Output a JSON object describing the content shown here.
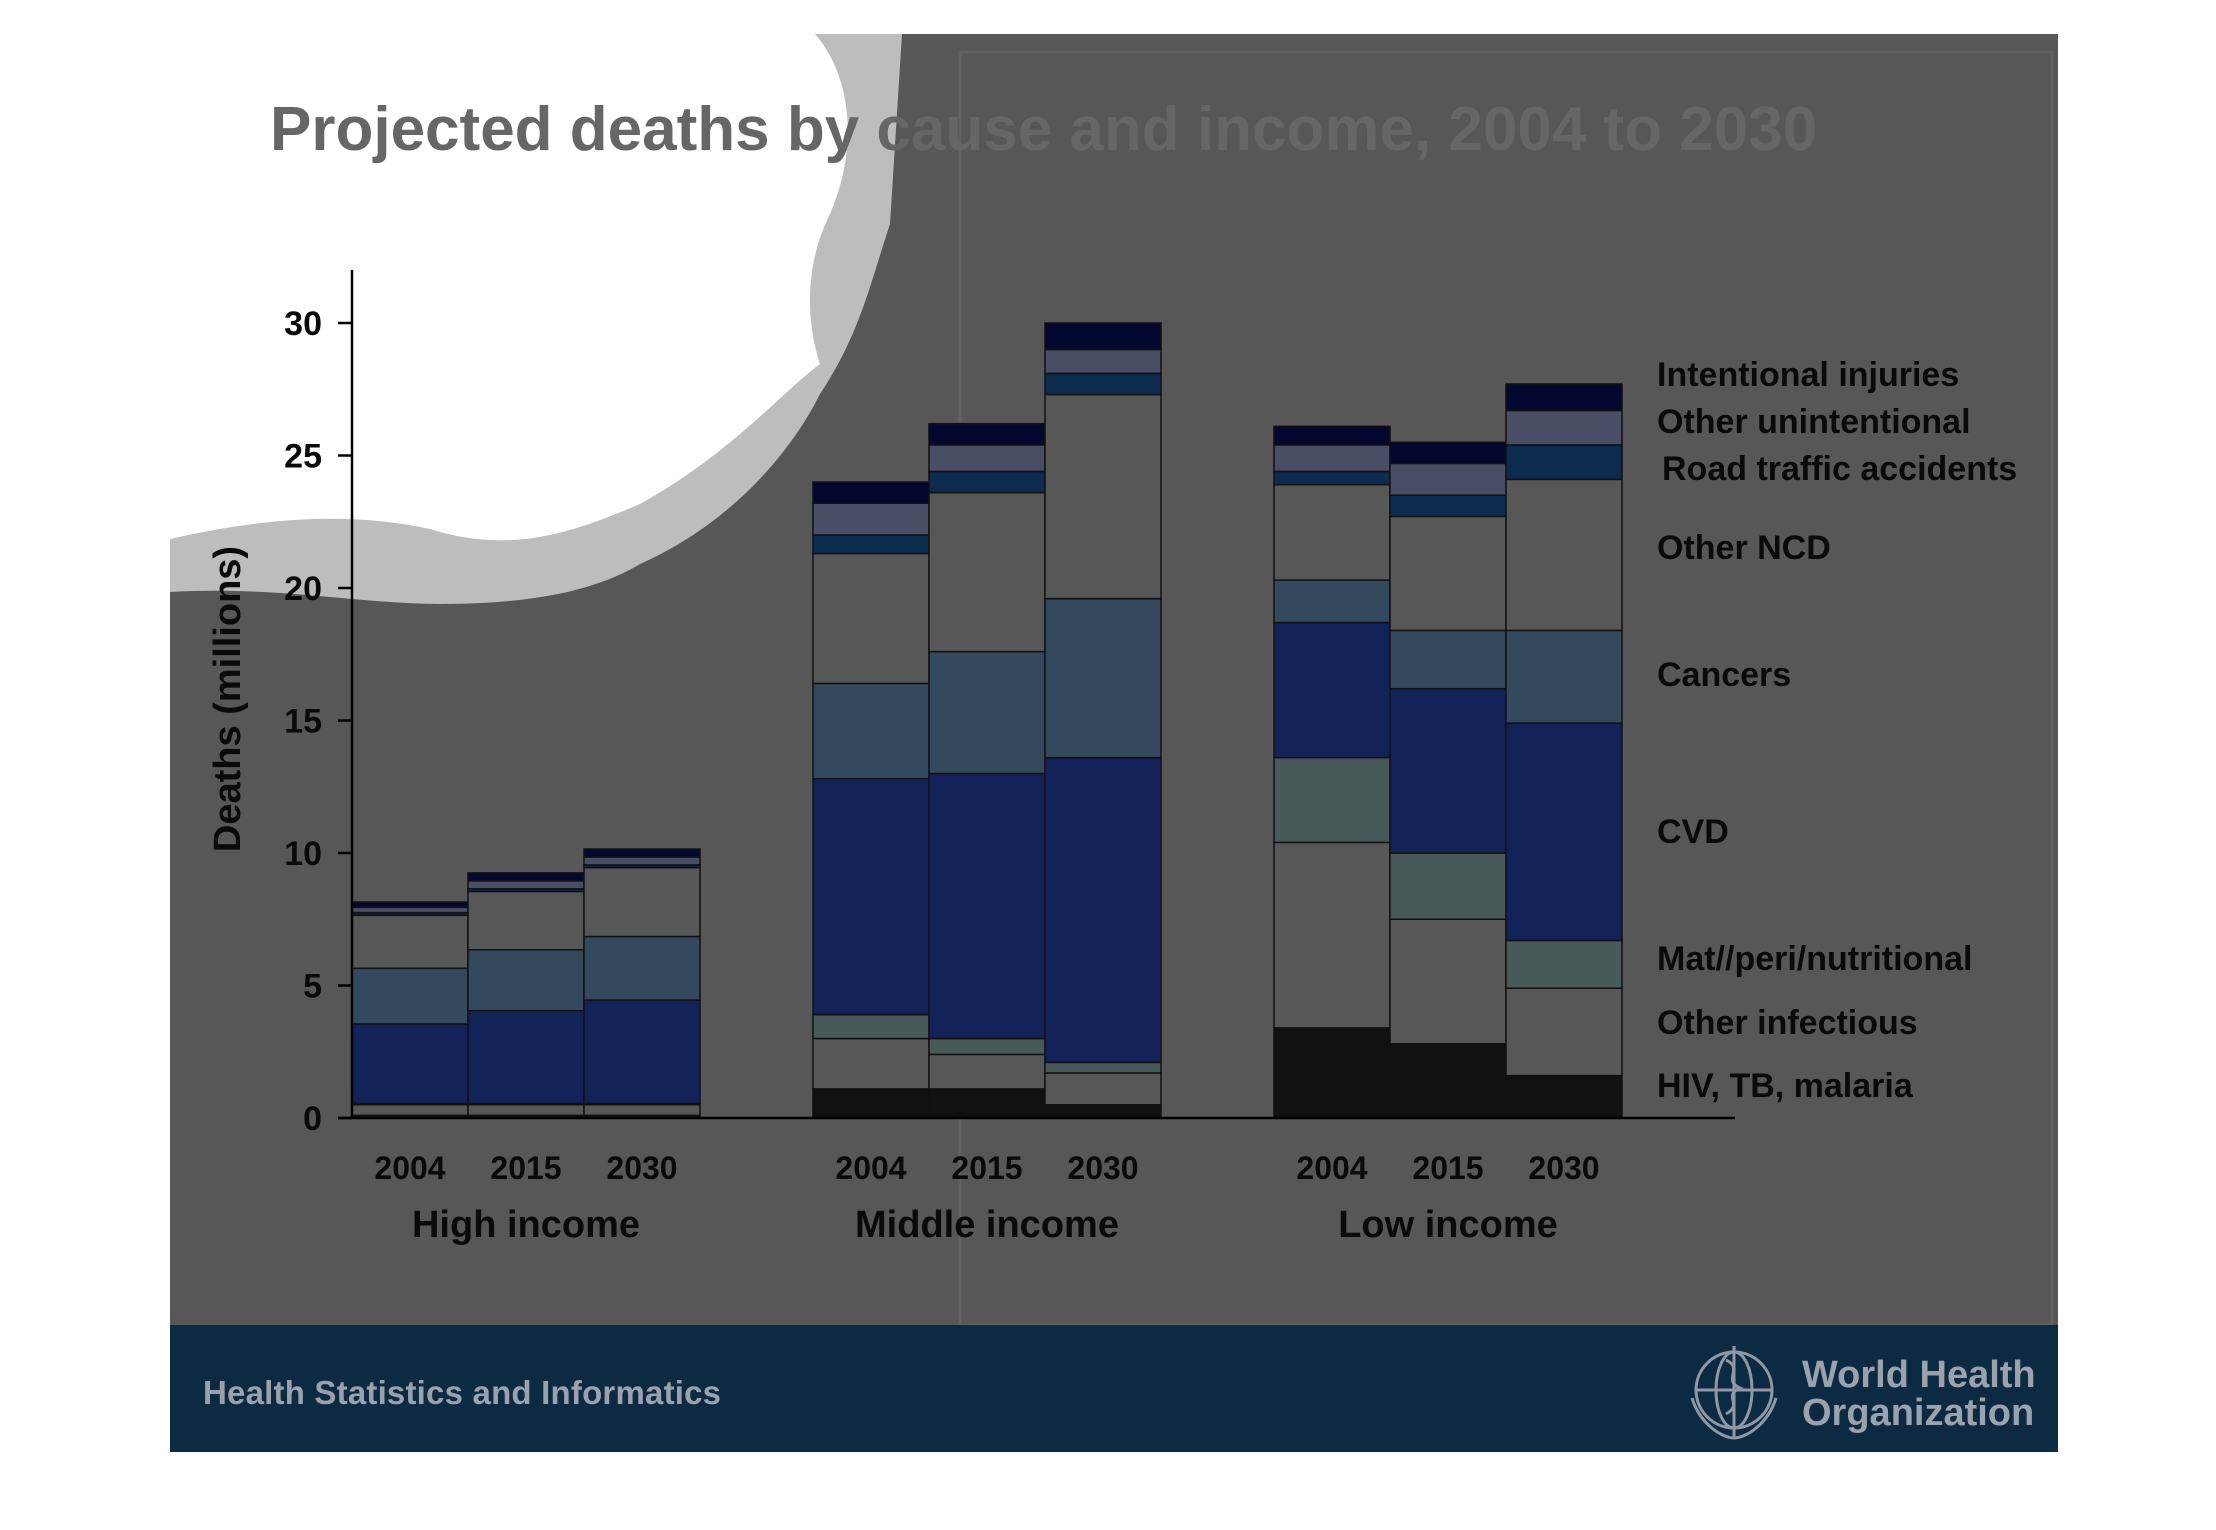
{
  "chart_data": {
    "type": "bar",
    "stacked": true,
    "title": "Projected deaths by cause and income, 2004 to 2030",
    "ylabel": "Deaths (millions)",
    "ylim": [
      0,
      32
    ],
    "yticks": [
      0,
      5,
      10,
      15,
      20,
      25,
      30
    ],
    "groups": [
      {
        "label": "High income",
        "years": [
          "2004",
          "2015",
          "2030"
        ]
      },
      {
        "label": "Middle income",
        "years": [
          "2004",
          "2015",
          "2030"
        ]
      },
      {
        "label": "Low income",
        "years": [
          "2004",
          "2015",
          "2030"
        ]
      }
    ],
    "series": [
      {
        "name": "HIV, TB, malaria",
        "color": "#111111",
        "values": [
          0.1,
          0.1,
          0.1,
          1.1,
          1.1,
          0.5,
          3.4,
          2.8,
          1.6
        ]
      },
      {
        "name": "Other infectious",
        "color": "#575757",
        "values": [
          0.4,
          0.4,
          0.4,
          1.9,
          1.3,
          1.2,
          7.0,
          4.7,
          3.3
        ]
      },
      {
        "name": "Mat//peri/nutritional",
        "color": "#48595a",
        "values": [
          0.05,
          0.05,
          0.05,
          0.9,
          0.6,
          0.4,
          3.2,
          2.5,
          1.8
        ]
      },
      {
        "name": "CVD",
        "color": "#14225a",
        "values": [
          3.0,
          3.5,
          3.9,
          8.9,
          10.0,
          11.5,
          5.1,
          6.2,
          8.2
        ]
      },
      {
        "name": "Cancers",
        "color": "#34495e",
        "values": [
          2.1,
          2.3,
          2.4,
          3.6,
          4.6,
          6.0,
          1.6,
          2.2,
          3.5
        ]
      },
      {
        "name": "Other NCD",
        "color": "#575757",
        "values": [
          2.0,
          2.2,
          2.6,
          4.9,
          6.0,
          7.7,
          3.6,
          4.3,
          5.7
        ]
      },
      {
        "name": "Road traffic accidents",
        "color": "#0d2a4f",
        "values": [
          0.1,
          0.1,
          0.1,
          0.7,
          0.8,
          0.8,
          0.5,
          0.8,
          1.3
        ]
      },
      {
        "name": "Other unintentional",
        "color": "#4a4d66",
        "values": [
          0.2,
          0.3,
          0.3,
          1.2,
          1.0,
          0.9,
          1.0,
          1.2,
          1.3
        ]
      },
      {
        "name": "Intentional injuries",
        "color": "#04082e",
        "values": [
          0.2,
          0.3,
          0.3,
          0.8,
          0.8,
          1.0,
          0.7,
          0.8,
          1.0
        ]
      }
    ],
    "legend_placement": "right",
    "grid": false
  },
  "footer": {
    "text": "Health Statistics and Informatics",
    "org_line1": "World Health",
    "org_line2": "Organization"
  },
  "icons": {
    "logo": "who-emblem-icon"
  }
}
